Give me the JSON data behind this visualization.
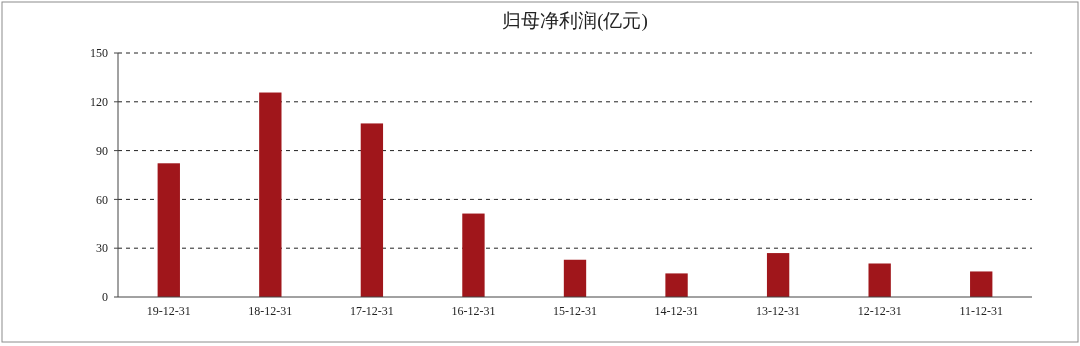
{
  "chart_data": {
    "type": "bar",
    "title": "归母净利润(亿元)",
    "categories": [
      "19-12-31",
      "18-12-31",
      "17-12-31",
      "16-12-31",
      "15-12-31",
      "14-12-31",
      "13-12-31",
      "12-12-31",
      "11-12-31"
    ],
    "values": [
      82.2,
      125.7,
      106.7,
      51.3,
      22.9,
      14.5,
      27.0,
      20.6,
      15.7
    ],
    "color": "#a0161b",
    "ylim": [
      0,
      150
    ],
    "yticks": [
      0,
      30,
      60,
      90,
      120,
      150
    ],
    "grid": "y"
  }
}
